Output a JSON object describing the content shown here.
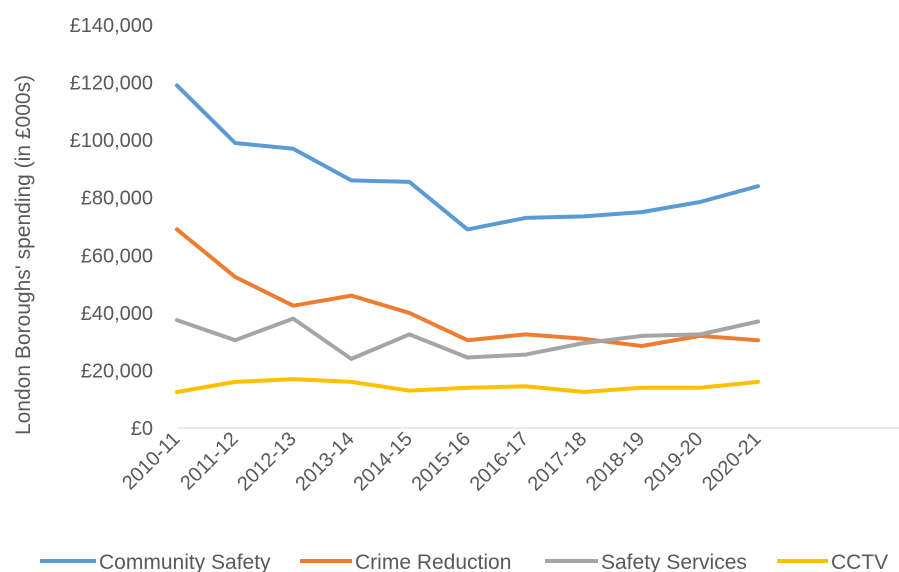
{
  "chart_data": {
    "type": "line",
    "title": "",
    "xlabel": "",
    "ylabel": "London Boroughs' spending (in £000s)",
    "ylim": [
      0,
      140000
    ],
    "y_ticks": [
      0,
      20000,
      40000,
      60000,
      80000,
      100000,
      120000,
      140000
    ],
    "y_tick_labels": [
      "£0",
      "£20,000",
      "£40,000",
      "£60,000",
      "£80,000",
      "£100,000",
      "£120,000",
      "£140,000"
    ],
    "categories": [
      "2010-11",
      "2011-12",
      "2012-13",
      "2013-14",
      "2014-15",
      "2015-16",
      "2016-17",
      "2017-18",
      "2018-19",
      "2019-20",
      "2020-21"
    ],
    "grid": false,
    "legend_position": "bottom",
    "series": [
      {
        "name": "Community Safety",
        "color": "#5B9BD5",
        "values": [
          119000,
          99000,
          97000,
          86000,
          85500,
          69000,
          73000,
          73500,
          75000,
          78500,
          84000
        ]
      },
      {
        "name": "Crime Reduction",
        "color": "#ED7D31",
        "values": [
          69000,
          52500,
          42500,
          46000,
          40000,
          30500,
          32500,
          31000,
          28500,
          32000,
          30500
        ]
      },
      {
        "name": "Safety Services",
        "color": "#A5A5A5",
        "values": [
          37500,
          30500,
          38000,
          24000,
          32500,
          24500,
          25500,
          29500,
          32000,
          32500,
          37000
        ]
      },
      {
        "name": "CCTV",
        "color": "#FFC000",
        "values": [
          12500,
          16000,
          17000,
          16000,
          13000,
          14000,
          14500,
          12500,
          14000,
          14000,
          16000
        ]
      }
    ]
  }
}
